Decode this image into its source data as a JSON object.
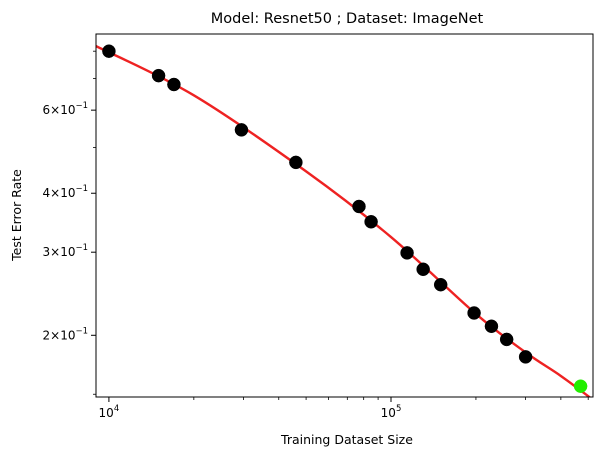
{
  "chart_data": {
    "type": "scatter",
    "title": "Model: Resnet50 ; Dataset: ImageNet",
    "xlabel": "Training Dataset Size",
    "ylabel": "Test Error Rate",
    "x_scale": "log",
    "y_scale": "log",
    "xlim": [
      9000,
      520000
    ],
    "ylim": [
      0.148,
      0.87
    ],
    "grid": false,
    "x_ticks": [
      {
        "value": 10000,
        "label": "10^4",
        "base": "10",
        "exp": "4"
      },
      {
        "value": 100000,
        "label": "10^5",
        "base": "10",
        "exp": "5"
      }
    ],
    "y_ticks": [
      {
        "value": 0.6,
        "label": "6×10^-1",
        "mant": "6",
        "base": "10",
        "exp": "−1"
      },
      {
        "value": 0.4,
        "label": "4×10^-1",
        "mant": "4",
        "base": "10",
        "exp": "−1"
      },
      {
        "value": 0.3,
        "label": "3×10^-1",
        "mant": "3",
        "base": "10",
        "exp": "−1"
      },
      {
        "value": 0.2,
        "label": "2×10^-1",
        "mant": "2",
        "base": "10",
        "exp": "−1"
      }
    ],
    "series": [
      {
        "color": "#000000",
        "marker": "circle",
        "points": [
          {
            "x": 10000,
            "y": 0.8
          },
          {
            "x": 15000,
            "y": 0.71
          },
          {
            "x": 17000,
            "y": 0.68
          },
          {
            "x": 29500,
            "y": 0.545
          },
          {
            "x": 46000,
            "y": 0.465
          },
          {
            "x": 77000,
            "y": 0.375
          },
          {
            "x": 85000,
            "y": 0.348
          },
          {
            "x": 114000,
            "y": 0.299
          },
          {
            "x": 130000,
            "y": 0.276
          },
          {
            "x": 150000,
            "y": 0.256
          },
          {
            "x": 197000,
            "y": 0.223
          },
          {
            "x": 227000,
            "y": 0.209
          },
          {
            "x": 257000,
            "y": 0.196
          },
          {
            "x": 300000,
            "y": 0.18
          }
        ]
      },
      {
        "color": "#22ee00",
        "marker": "circle",
        "points": [
          {
            "x": 470000,
            "y": 0.156
          }
        ]
      }
    ],
    "fit_line": {
      "color": "#ee2222",
      "points": [
        {
          "x": 9000,
          "y": 0.82
        },
        {
          "x": 20000,
          "y": 0.645
        },
        {
          "x": 50000,
          "y": 0.445
        },
        {
          "x": 100000,
          "y": 0.323
        },
        {
          "x": 200000,
          "y": 0.222
        },
        {
          "x": 300000,
          "y": 0.184
        },
        {
          "x": 400000,
          "y": 0.164
        },
        {
          "x": 520000,
          "y": 0.146
        }
      ]
    }
  }
}
